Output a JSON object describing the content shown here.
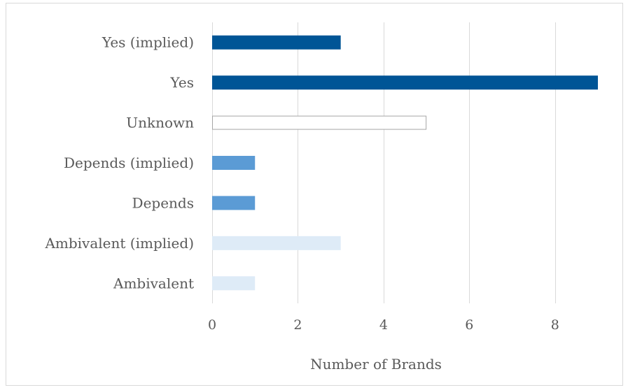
{
  "chart_data": {
    "type": "bar",
    "orientation": "horizontal",
    "title": "",
    "xlabel": "Number of Brands",
    "ylabel": "",
    "categories": [
      "Yes (implied)",
      "Yes",
      "Unknown",
      "Depends (implied)",
      "Depends",
      "Ambivalent (implied)",
      "Ambivalent"
    ],
    "values": [
      3,
      9,
      5,
      1,
      1,
      3,
      1
    ],
    "bar_colors": [
      "#005596",
      "#005596",
      "#ffffff",
      "#5b9bd5",
      "#5b9bd5",
      "#deebf7",
      "#deebf7"
    ],
    "bar_outline_colors": [
      "none",
      "none",
      "#a6a6a6",
      "none",
      "none",
      "none",
      "none"
    ],
    "xlim": [
      0,
      9
    ],
    "xticks": [
      0,
      2,
      4,
      6,
      8
    ],
    "grid": "vertical",
    "legend": "none"
  }
}
